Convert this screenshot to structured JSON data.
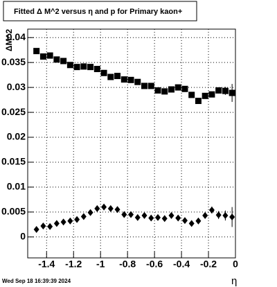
{
  "chart_data": {
    "type": "scatter",
    "title": "Fitted Δ M^2 versus η and p for Primary kaon+",
    "y_label": "ΔM^2",
    "x_label": "η",
    "footer": "Wed Sep 18 16:39:39 2024",
    "x": [
      -1.475,
      -1.425,
      -1.375,
      -1.325,
      -1.275,
      -1.225,
      -1.175,
      -1.125,
      -1.075,
      -1.025,
      -0.975,
      -0.925,
      -0.875,
      -0.825,
      -0.775,
      -0.725,
      -0.675,
      -0.625,
      -0.575,
      -0.525,
      -0.475,
      -0.425,
      -0.375,
      -0.325,
      -0.275,
      -0.225,
      -0.175,
      -0.125,
      -0.075,
      -0.025
    ],
    "series": [
      {
        "marker": "square",
        "color": "#000000",
        "values": [
          0.0373,
          0.0362,
          0.0364,
          0.0356,
          0.0353,
          0.0345,
          0.0341,
          0.0342,
          0.0341,
          0.0337,
          0.0329,
          0.0321,
          0.0323,
          0.0316,
          0.0315,
          0.0311,
          0.0303,
          0.0303,
          0.0294,
          0.0292,
          0.0296,
          0.03,
          0.0297,
          0.0285,
          0.0273,
          0.0283,
          0.0286,
          0.0294,
          0.0293,
          0.0289
        ],
        "errors": [
          0.0004,
          0.0003,
          0.0003,
          0.0003,
          0.0003,
          0.0003,
          0.0003,
          0.0003,
          0.0003,
          0.0003,
          0.0003,
          0.0003,
          0.0003,
          0.0003,
          0.0003,
          0.0003,
          0.0003,
          0.0003,
          0.0003,
          0.0003,
          0.0003,
          0.0003,
          0.0003,
          0.0004,
          0.0005,
          0.0005,
          0.0005,
          0.0006,
          0.0008,
          0.0018
        ]
      },
      {
        "marker": "diamond",
        "color": "#000000",
        "values": [
          0.0015,
          0.0022,
          0.0021,
          0.0027,
          0.003,
          0.0032,
          0.0035,
          0.0041,
          0.0049,
          0.0057,
          0.006,
          0.0057,
          0.0055,
          0.0045,
          0.0045,
          0.0039,
          0.0043,
          0.0038,
          0.0039,
          0.0037,
          0.0043,
          0.0038,
          0.0033,
          0.0027,
          0.0032,
          0.0043,
          0.0054,
          0.0044,
          0.0043,
          0.004
        ],
        "errors": [
          0.0003,
          0.0003,
          0.0003,
          0.0003,
          0.0003,
          0.0003,
          0.0003,
          0.0003,
          0.0003,
          0.0003,
          0.0003,
          0.0003,
          0.0003,
          0.0003,
          0.0003,
          0.0003,
          0.0003,
          0.0003,
          0.0003,
          0.0003,
          0.0003,
          0.0003,
          0.0003,
          0.0004,
          0.0005,
          0.0006,
          0.0007,
          0.0008,
          0.001,
          0.002
        ]
      }
    ],
    "xlim": [
      -1.54,
      0
    ],
    "xticks": [
      -1.4,
      -1.2,
      -1,
      -0.8,
      -0.6,
      -0.4,
      -0.2,
      0
    ],
    "ylim": [
      -0.0042,
      0.0417
    ],
    "yticks": [
      0,
      0.005,
      0.01,
      0.015,
      0.02,
      0.025,
      0.03,
      0.035,
      0.04
    ],
    "grid": true
  }
}
